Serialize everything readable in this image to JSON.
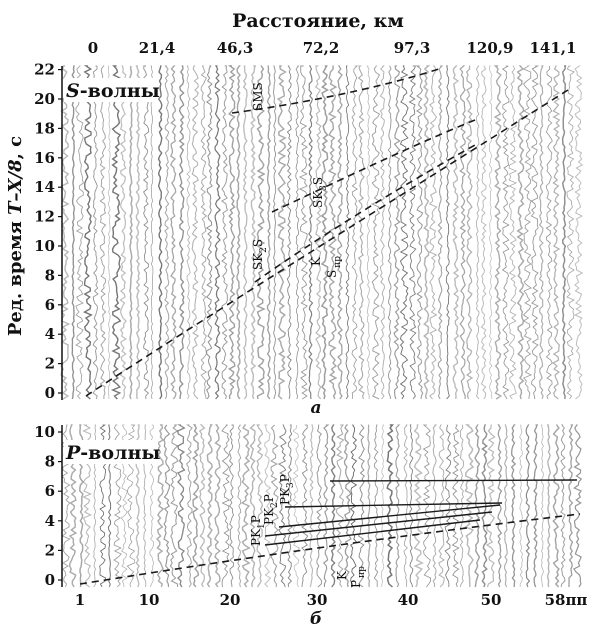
{
  "top_axis": {
    "title": "Расстояние, км",
    "ticks": [
      "0",
      "21,4",
      "46,3",
      "72,2",
      "97,3",
      "120,9",
      "141,1"
    ]
  },
  "y_axis_label": {
    "prefix": "Ред. время ",
    "expr": "T–X/8",
    "suffix": ", с"
  },
  "panel_a": {
    "label_bold": "S",
    "label_rest": "-волны",
    "caption": "а",
    "y_ticks": [
      0,
      2,
      4,
      6,
      8,
      10,
      12,
      14,
      16,
      18,
      20,
      22
    ],
    "annotations": {
      "sms": "SMS",
      "sk3s_a": "SK",
      "sk3s_b": "3",
      "sk3s_c": "S",
      "sk2s_a": "SK",
      "sk2s_b": "2",
      "sk2s_c": "S",
      "k": "K",
      "spr_a": "S",
      "spr_b": "пр"
    }
  },
  "panel_b": {
    "label_bold": "P",
    "label_rest": "-волны",
    "caption": "б",
    "y_ticks": [
      0,
      2,
      4,
      6,
      8,
      10
    ],
    "x_ticks": [
      "1",
      "10",
      "20",
      "30",
      "40",
      "50",
      "58пп"
    ],
    "annotations": {
      "pk1p_a": "PK",
      "pk1p_b": "1",
      "pk1p_c": "P",
      "pk2p_a": "PK",
      "pk2p_b": "2",
      "pk2p_c": "P",
      "pk3p_a": "PK",
      "pk3p_b": "3",
      "pk3p_c": "P",
      "k": "K",
      "ppr_a": "P",
      "ppr_b": "пр"
    }
  },
  "colors": {
    "trace": "#8a8a8a",
    "trace_dark": "#555555",
    "axis": "#111111",
    "curve": "#1a1a1a"
  }
}
